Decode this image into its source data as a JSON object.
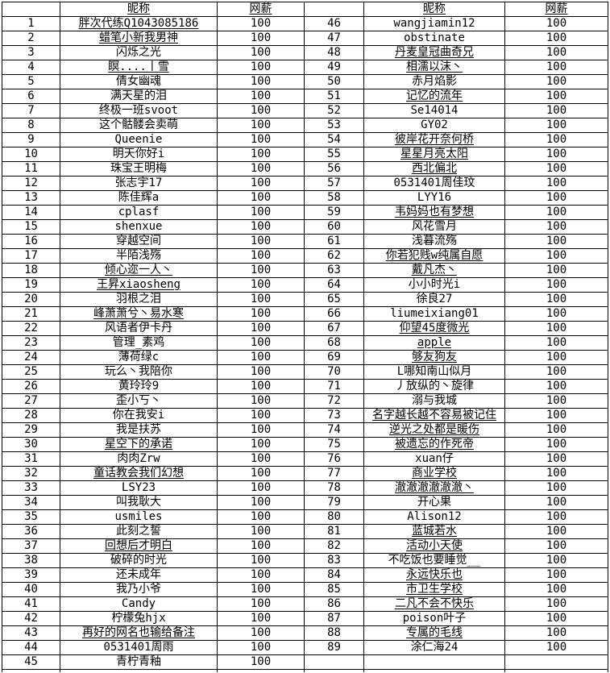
{
  "table": {
    "headers": {
      "nickname": "昵称",
      "pay": "网薪"
    },
    "left_rows": [
      {
        "n": "1",
        "name": "胖次代练Q1043085186",
        "pay": "100",
        "u": true
      },
      {
        "n": "2",
        "name": "蜡笔小新我男神",
        "pay": "100",
        "u": true
      },
      {
        "n": "3",
        "name": "闪烁之光",
        "pay": "100",
        "u": false
      },
      {
        "n": "4",
        "name": "瞑....丨雪",
        "pay": "100",
        "u": true
      },
      {
        "n": "5",
        "name": "倩女幽魂",
        "pay": "100",
        "u": false
      },
      {
        "n": "6",
        "name": "满天星的泪",
        "pay": "100",
        "u": false
      },
      {
        "n": "7",
        "name": "终极一班svoot",
        "pay": "100",
        "u": false
      },
      {
        "n": "8",
        "name": "这个骷髅会卖萌",
        "pay": "100",
        "u": false
      },
      {
        "n": "9",
        "name": "Queenie",
        "pay": "100",
        "u": false
      },
      {
        "n": "10",
        "name": "明天你好i",
        "pay": "100",
        "u": false
      },
      {
        "n": "11",
        "name": "珠宝王明梅",
        "pay": "100",
        "u": false
      },
      {
        "n": "12",
        "name": "张志宇17",
        "pay": "100",
        "u": false
      },
      {
        "n": "13",
        "name": "陈佳辉a",
        "pay": "100",
        "u": false
      },
      {
        "n": "14",
        "name": "cplasf",
        "pay": "100",
        "u": false
      },
      {
        "n": "15",
        "name": "shenxue",
        "pay": "100",
        "u": false
      },
      {
        "n": "16",
        "name": "穿越空间",
        "pay": "100",
        "u": false
      },
      {
        "n": "17",
        "name": "半陌浅殇",
        "pay": "100",
        "u": false
      },
      {
        "n": "18",
        "name": "倾心迩一人丶",
        "pay": "100",
        "u": true
      },
      {
        "n": "19",
        "name": "王昇xiaosheng",
        "pay": "100",
        "u": true
      },
      {
        "n": "20",
        "name": "羽根之泪",
        "pay": "100",
        "u": false
      },
      {
        "n": "21",
        "name": "峰萧萧兮丶易水寒",
        "pay": "100",
        "u": true
      },
      {
        "n": "22",
        "name": "风语者伊卡丹",
        "pay": "100",
        "u": false
      },
      {
        "n": "23",
        "name": "管理_素鸡",
        "pay": "100",
        "u": false
      },
      {
        "n": "24",
        "name": "薄荷绿c",
        "pay": "100",
        "u": false
      },
      {
        "n": "25",
        "name": "玩么丶我陪你",
        "pay": "100",
        "u": false
      },
      {
        "n": "26",
        "name": "黄玲玲9",
        "pay": "100",
        "u": false
      },
      {
        "n": "27",
        "name": "歪小丂丶",
        "pay": "100",
        "u": false
      },
      {
        "n": "28",
        "name": "你在我安i",
        "pay": "100",
        "u": false
      },
      {
        "n": "29",
        "name": "我是扶苏",
        "pay": "100",
        "u": false
      },
      {
        "n": "30",
        "name": "星空下的承诺",
        "pay": "100",
        "u": true
      },
      {
        "n": "31",
        "name": "肉肉Zrw",
        "pay": "100",
        "u": false
      },
      {
        "n": "32",
        "name": "童话教会我们幻想",
        "pay": "100",
        "u": true
      },
      {
        "n": "33",
        "name": "LSY23",
        "pay": "100",
        "u": false
      },
      {
        "n": "34",
        "name": "叫我耿大",
        "pay": "100",
        "u": false
      },
      {
        "n": "35",
        "name": "usmiles",
        "pay": "100",
        "u": false
      },
      {
        "n": "36",
        "name": "此刻之誓",
        "pay": "100",
        "u": false
      },
      {
        "n": "37",
        "name": "回想后才明白",
        "pay": "100",
        "u": true
      },
      {
        "n": "38",
        "name": "破碎的时光",
        "pay": "100",
        "u": false
      },
      {
        "n": "39",
        "name": "还未成年",
        "pay": "100",
        "u": false
      },
      {
        "n": "40",
        "name": "我乃小爷",
        "pay": "100",
        "u": false
      },
      {
        "n": "41",
        "name": "Candy",
        "pay": "100",
        "u": false
      },
      {
        "n": "42",
        "name": "柠檬兔hjx",
        "pay": "100",
        "u": false
      },
      {
        "n": "43",
        "name": "再好的网名也输给备注",
        "pay": "100",
        "u": true
      },
      {
        "n": "44",
        "name": "0531401周雨",
        "pay": "100",
        "u": false
      },
      {
        "n": "45",
        "name": "青柠青釉",
        "pay": "100",
        "u": false
      }
    ],
    "right_rows": [
      {
        "n": "46",
        "name": "wangjiamin12",
        "pay": "100",
        "u": false
      },
      {
        "n": "47",
        "name": "obstinate",
        "pay": "100",
        "u": false
      },
      {
        "n": "48",
        "name": "丹麦皇冠曲奇兄",
        "pay": "100",
        "u": true
      },
      {
        "n": "49",
        "name": "相濡以沫丶",
        "pay": "100",
        "u": true
      },
      {
        "n": "50",
        "name": "赤月焰影",
        "pay": "100",
        "u": false
      },
      {
        "n": "51",
        "name": "记忆的流年",
        "pay": "100",
        "u": true
      },
      {
        "n": "52",
        "name": "Se14014",
        "pay": "100",
        "u": false
      },
      {
        "n": "53",
        "name": "GY02",
        "pay": "100",
        "u": false
      },
      {
        "n": "54",
        "name": "彼岸花开奈何桥",
        "pay": "100",
        "u": true
      },
      {
        "n": "55",
        "name": "星星月亮太阳",
        "pay": "100",
        "u": true
      },
      {
        "n": "56",
        "name": "西北偏北",
        "pay": "100",
        "u": true
      },
      {
        "n": "57",
        "name": "0531401周佳玟",
        "pay": "100",
        "u": false
      },
      {
        "n": "58",
        "name": "LYY16",
        "pay": "100",
        "u": false
      },
      {
        "n": "59",
        "name": "韦妈妈也有梦想",
        "pay": "100",
        "u": true
      },
      {
        "n": "60",
        "name": "风花雪月",
        "pay": "100",
        "u": false
      },
      {
        "n": "61",
        "name": "浅暮流殇",
        "pay": "100",
        "u": false
      },
      {
        "n": "62",
        "name": "你若犯贱w纯属自愿",
        "pay": "100",
        "u": true
      },
      {
        "n": "63",
        "name": "戴凡杰丶",
        "pay": "100",
        "u": true
      },
      {
        "n": "64",
        "name": "小小时光i",
        "pay": "100",
        "u": false
      },
      {
        "n": "65",
        "name": "徐良27",
        "pay": "100",
        "u": false
      },
      {
        "n": "66",
        "name": "liumeixiang01",
        "pay": "100",
        "u": false
      },
      {
        "n": "67",
        "name": "仰望45度微光",
        "pay": "100",
        "u": true
      },
      {
        "n": "68",
        "name": "apple",
        "pay": "100",
        "u": true
      },
      {
        "n": "69",
        "name": "够友狗友",
        "pay": "100",
        "u": true
      },
      {
        "n": "70",
        "name": "L哪知南山似月",
        "pay": "100",
        "u": false
      },
      {
        "n": "71",
        "name": "丿放纵的丶旋律",
        "pay": "100",
        "u": false
      },
      {
        "n": "72",
        "name": "溺与我城",
        "pay": "100",
        "u": false
      },
      {
        "n": "73",
        "name": "名字越长越不容易被记住",
        "pay": "100",
        "u": true
      },
      {
        "n": "74",
        "name": "逆光之处都是暖伤",
        "pay": "100",
        "u": true
      },
      {
        "n": "75",
        "name": "被遗忘的作死帝",
        "pay": "100",
        "u": true
      },
      {
        "n": "76",
        "name": "xuan仔",
        "pay": "100",
        "u": false
      },
      {
        "n": "77",
        "name": "商业学校",
        "pay": "100",
        "u": true
      },
      {
        "n": "78",
        "name": "澈澈澈澈澈澈丶",
        "pay": "100",
        "u": true
      },
      {
        "n": "79",
        "name": "开心果",
        "pay": "100",
        "u": false
      },
      {
        "n": "80",
        "name": "Alison12",
        "pay": "100",
        "u": false
      },
      {
        "n": "81",
        "name": "蓝城若水",
        "pay": "100",
        "u": true
      },
      {
        "n": "82",
        "name": "活动小天使",
        "pay": "100",
        "u": true
      },
      {
        "n": "83",
        "name": "不吃饭也要睡觉__",
        "pay": "100",
        "u": false
      },
      {
        "n": "84",
        "name": "永远快乐也",
        "pay": "100",
        "u": true
      },
      {
        "n": "85",
        "name": "市卫生学校",
        "pay": "100",
        "u": true
      },
      {
        "n": "86",
        "name": "二凡不会不快乐",
        "pay": "100",
        "u": true
      },
      {
        "n": "87",
        "name": "poison叶子",
        "pay": "100",
        "u": false
      },
      {
        "n": "88",
        "name": "专属的毛线",
        "pay": "100",
        "u": true
      },
      {
        "n": "89",
        "name": "涂仁海24",
        "pay": "100",
        "u": false
      },
      {
        "n": "",
        "name": "",
        "pay": "",
        "u": false
      }
    ]
  }
}
